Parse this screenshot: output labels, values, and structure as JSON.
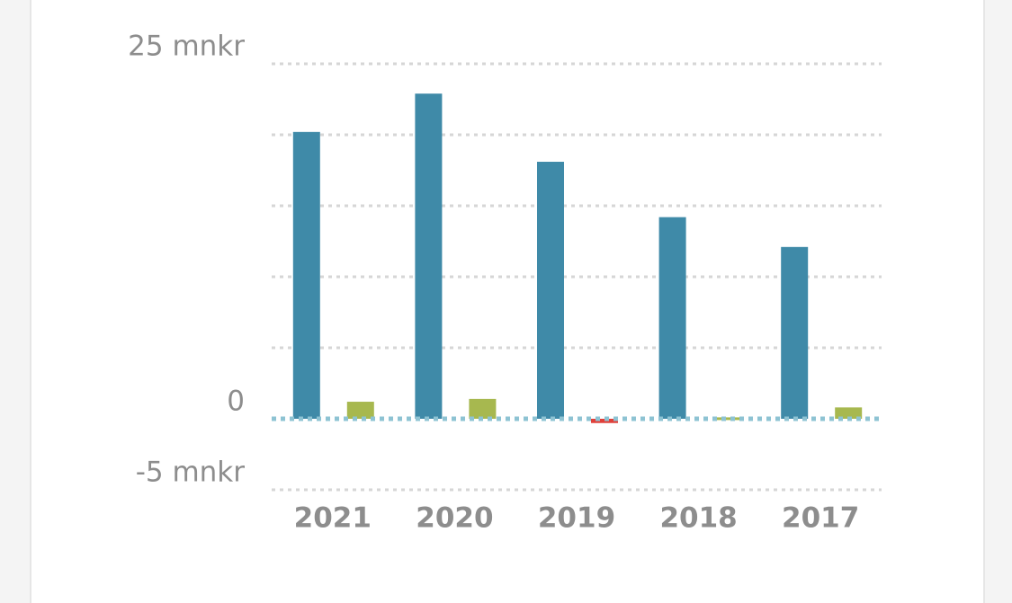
{
  "chart_data": {
    "type": "bar",
    "categories": [
      "2021",
      "2020",
      "2019",
      "2018",
      "2017"
    ],
    "series": [
      {
        "color": "#3f8aa8",
        "values": [
          20.2,
          22.9,
          18.1,
          14.2,
          12.1
        ]
      },
      {
        "color": "#a7b84f",
        "negative_color": "#e0403a",
        "values": [
          1.2,
          1.4,
          -0.3,
          0.1,
          0.8
        ]
      }
    ],
    "ylim": [
      -5,
      25
    ],
    "yticks": [
      {
        "value": 25,
        "label": "25 mnkr"
      },
      {
        "value": 20,
        "label": null
      },
      {
        "value": 15,
        "label": null
      },
      {
        "value": 10,
        "label": null
      },
      {
        "value": 5,
        "label": null
      },
      0,
      {
        "value": -5,
        "label": "-5 mnkr"
      }
    ],
    "grid": true
  }
}
